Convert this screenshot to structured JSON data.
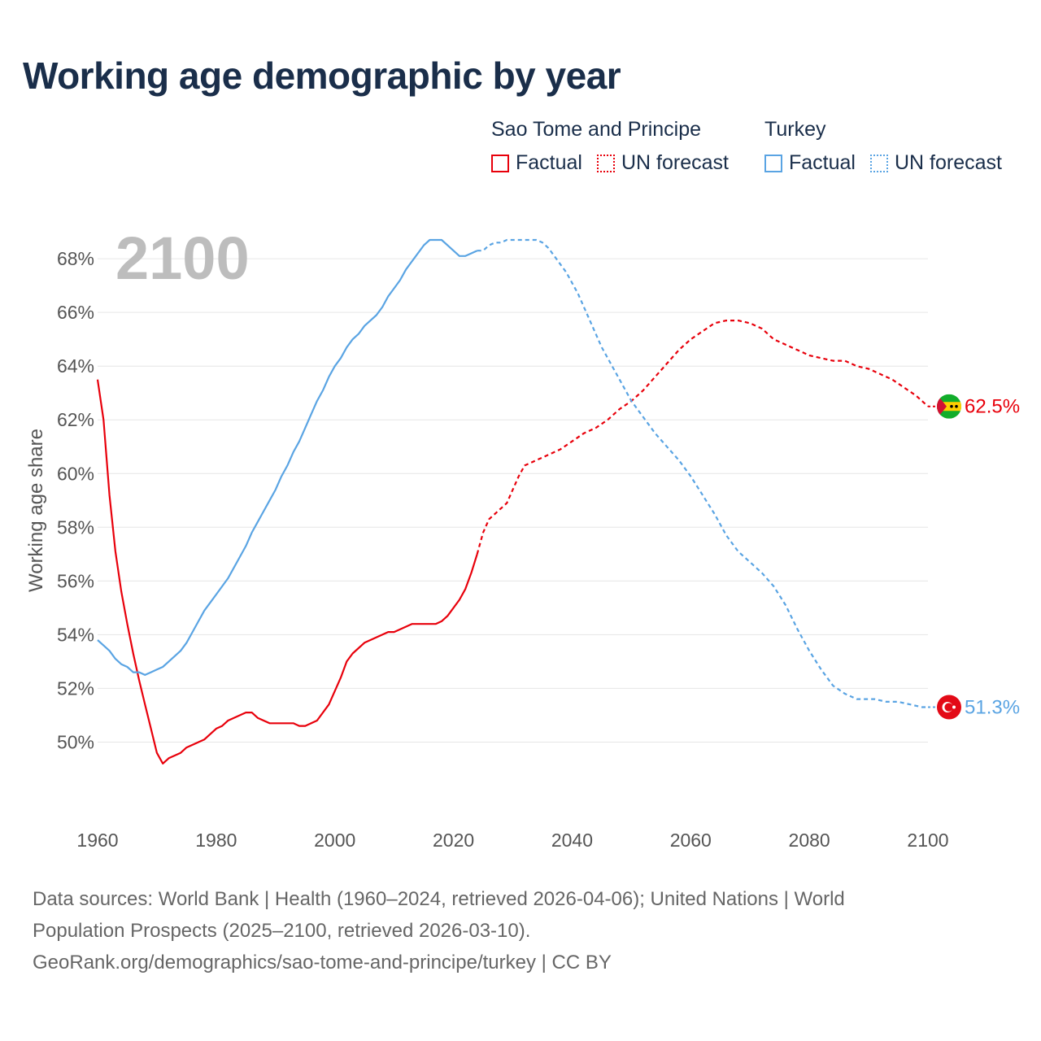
{
  "title": "Working age demographic by year",
  "legend": [
    {
      "country": "Sao Tome and Principe",
      "color": "#e8000b",
      "factual_label": "Factual",
      "forecast_label": "UN forecast"
    },
    {
      "country": "Turkey",
      "color": "#5aa4e3",
      "factual_label": "Factual",
      "forecast_label": "UN forecast"
    }
  ],
  "year_overlay": "2100",
  "footer": {
    "line1": "Data sources: World Bank | Health (1960–2024, retrieved 2026-04-06); United Nations | World",
    "line2": "Population Prospects (2025–2100, retrieved 2026-03-10).",
    "line3": "GeoRank.org/demographics/sao-tome-and-principe/turkey | CC BY"
  },
  "chart_data": {
    "type": "line",
    "title": "Working age demographic by year",
    "xlabel": "",
    "ylabel": "Working age share",
    "xlim": [
      1960,
      2100
    ],
    "ylim": [
      47.5,
      69.7
    ],
    "x_ticks": [
      1960,
      1980,
      2000,
      2020,
      2040,
      2060,
      2080,
      2100
    ],
    "y_ticks": [
      50,
      52,
      54,
      56,
      58,
      60,
      62,
      64,
      66,
      68
    ],
    "y_tick_labels": [
      "50%",
      "52%",
      "54%",
      "56%",
      "58%",
      "60%",
      "62%",
      "64%",
      "66%",
      "68%"
    ],
    "x_tick_labels": [
      "1960",
      "1980",
      "2000",
      "2020",
      "2040",
      "2060",
      "2080",
      "2100"
    ],
    "factual_end_year": 2024,
    "series": [
      {
        "name": "Sao Tome and Principe",
        "color": "#e8000b",
        "end_label": "62.5%",
        "flag": "sao-tome-and-principe-flag",
        "points": [
          [
            1960,
            63.5
          ],
          [
            1961,
            62.0
          ],
          [
            1962,
            59.2
          ],
          [
            1963,
            57.1
          ],
          [
            1964,
            55.6
          ],
          [
            1965,
            54.4
          ],
          [
            1966,
            53.3
          ],
          [
            1967,
            52.3
          ],
          [
            1968,
            51.4
          ],
          [
            1969,
            50.5
          ],
          [
            1970,
            49.6
          ],
          [
            1971,
            49.2
          ],
          [
            1972,
            49.4
          ],
          [
            1974,
            49.6
          ],
          [
            1975,
            49.8
          ],
          [
            1978,
            50.1
          ],
          [
            1980,
            50.5
          ],
          [
            1981,
            50.6
          ],
          [
            1982,
            50.8
          ],
          [
            1985,
            51.1
          ],
          [
            1986,
            51.1
          ],
          [
            1987,
            50.9
          ],
          [
            1989,
            50.7
          ],
          [
            1993,
            50.7
          ],
          [
            1994,
            50.6
          ],
          [
            1995,
            50.6
          ],
          [
            1997,
            50.8
          ],
          [
            1999,
            51.4
          ],
          [
            2001,
            52.4
          ],
          [
            2002,
            53.0
          ],
          [
            2003,
            53.3
          ],
          [
            2005,
            53.7
          ],
          [
            2008,
            54.0
          ],
          [
            2009,
            54.1
          ],
          [
            2010,
            54.1
          ],
          [
            2013,
            54.4
          ],
          [
            2017,
            54.4
          ],
          [
            2018,
            54.5
          ],
          [
            2019,
            54.7
          ],
          [
            2021,
            55.3
          ],
          [
            2022,
            55.7
          ],
          [
            2023,
            56.3
          ],
          [
            2024,
            57.0
          ],
          [
            2025,
            57.8
          ],
          [
            2026,
            58.3
          ],
          [
            2028,
            58.7
          ],
          [
            2029,
            58.9
          ],
          [
            2030,
            59.4
          ],
          [
            2031,
            59.9
          ],
          [
            2032,
            60.3
          ],
          [
            2033,
            60.4
          ],
          [
            2035,
            60.6
          ],
          [
            2037,
            60.8
          ],
          [
            2038,
            60.9
          ],
          [
            2040,
            61.2
          ],
          [
            2042,
            61.5
          ],
          [
            2044,
            61.7
          ],
          [
            2046,
            62.0
          ],
          [
            2048,
            62.4
          ],
          [
            2050,
            62.7
          ],
          [
            2052,
            63.1
          ],
          [
            2054,
            63.6
          ],
          [
            2056,
            64.1
          ],
          [
            2058,
            64.6
          ],
          [
            2060,
            65.0
          ],
          [
            2062,
            65.3
          ],
          [
            2064,
            65.6
          ],
          [
            2066,
            65.7
          ],
          [
            2068,
            65.7
          ],
          [
            2070,
            65.6
          ],
          [
            2072,
            65.4
          ],
          [
            2074,
            65.0
          ],
          [
            2076,
            64.8
          ],
          [
            2078,
            64.6
          ],
          [
            2080,
            64.4
          ],
          [
            2082,
            64.3
          ],
          [
            2084,
            64.2
          ],
          [
            2086,
            64.2
          ],
          [
            2088,
            64.0
          ],
          [
            2090,
            63.9
          ],
          [
            2092,
            63.7
          ],
          [
            2094,
            63.5
          ],
          [
            2096,
            63.2
          ],
          [
            2098,
            62.9
          ],
          [
            2099,
            62.7
          ],
          [
            2100,
            62.5
          ]
        ]
      },
      {
        "name": "Turkey",
        "color": "#5aa4e3",
        "end_label": "51.3%",
        "flag": "turkey-flag",
        "points": [
          [
            1960,
            53.8
          ],
          [
            1961,
            53.6
          ],
          [
            1962,
            53.4
          ],
          [
            1963,
            53.1
          ],
          [
            1964,
            52.9
          ],
          [
            1965,
            52.8
          ],
          [
            1966,
            52.6
          ],
          [
            1967,
            52.6
          ],
          [
            1968,
            52.5
          ],
          [
            1969,
            52.6
          ],
          [
            1970,
            52.7
          ],
          [
            1971,
            52.8
          ],
          [
            1972,
            53.0
          ],
          [
            1973,
            53.2
          ],
          [
            1974,
            53.4
          ],
          [
            1975,
            53.7
          ],
          [
            1976,
            54.1
          ],
          [
            1977,
            54.5
          ],
          [
            1978,
            54.9
          ],
          [
            1979,
            55.2
          ],
          [
            1980,
            55.5
          ],
          [
            1981,
            55.8
          ],
          [
            1982,
            56.1
          ],
          [
            1983,
            56.5
          ],
          [
            1984,
            56.9
          ],
          [
            1985,
            57.3
          ],
          [
            1986,
            57.8
          ],
          [
            1987,
            58.2
          ],
          [
            1988,
            58.6
          ],
          [
            1989,
            59.0
          ],
          [
            1990,
            59.4
          ],
          [
            1991,
            59.9
          ],
          [
            1992,
            60.3
          ],
          [
            1993,
            60.8
          ],
          [
            1994,
            61.2
          ],
          [
            1995,
            61.7
          ],
          [
            1996,
            62.2
          ],
          [
            1997,
            62.7
          ],
          [
            1998,
            63.1
          ],
          [
            1999,
            63.6
          ],
          [
            2000,
            64.0
          ],
          [
            2001,
            64.3
          ],
          [
            2002,
            64.7
          ],
          [
            2003,
            65.0
          ],
          [
            2004,
            65.2
          ],
          [
            2005,
            65.5
          ],
          [
            2006,
            65.7
          ],
          [
            2007,
            65.9
          ],
          [
            2008,
            66.2
          ],
          [
            2009,
            66.6
          ],
          [
            2010,
            66.9
          ],
          [
            2011,
            67.2
          ],
          [
            2012,
            67.6
          ],
          [
            2013,
            67.9
          ],
          [
            2014,
            68.2
          ],
          [
            2015,
            68.5
          ],
          [
            2016,
            68.7
          ],
          [
            2018,
            68.7
          ],
          [
            2019,
            68.5
          ],
          [
            2020,
            68.3
          ],
          [
            2021,
            68.1
          ],
          [
            2022,
            68.1
          ],
          [
            2023,
            68.2
          ],
          [
            2024,
            68.3
          ],
          [
            2025,
            68.3
          ],
          [
            2026,
            68.5
          ],
          [
            2027,
            68.6
          ],
          [
            2028,
            68.6
          ],
          [
            2029,
            68.7
          ],
          [
            2034,
            68.7
          ],
          [
            2035,
            68.6
          ],
          [
            2036,
            68.4
          ],
          [
            2037,
            68.1
          ],
          [
            2038,
            67.8
          ],
          [
            2039,
            67.5
          ],
          [
            2040,
            67.1
          ],
          [
            2041,
            66.7
          ],
          [
            2042,
            66.2
          ],
          [
            2043,
            65.7
          ],
          [
            2044,
            65.2
          ],
          [
            2045,
            64.7
          ],
          [
            2046,
            64.3
          ],
          [
            2047,
            63.9
          ],
          [
            2048,
            63.5
          ],
          [
            2049,
            63.1
          ],
          [
            2050,
            62.7
          ],
          [
            2052,
            62.1
          ],
          [
            2054,
            61.5
          ],
          [
            2056,
            61.0
          ],
          [
            2058,
            60.5
          ],
          [
            2060,
            59.9
          ],
          [
            2062,
            59.2
          ],
          [
            2064,
            58.5
          ],
          [
            2066,
            57.7
          ],
          [
            2068,
            57.1
          ],
          [
            2070,
            56.7
          ],
          [
            2072,
            56.3
          ],
          [
            2074,
            55.8
          ],
          [
            2076,
            55.1
          ],
          [
            2078,
            54.2
          ],
          [
            2080,
            53.4
          ],
          [
            2082,
            52.7
          ],
          [
            2084,
            52.1
          ],
          [
            2086,
            51.8
          ],
          [
            2088,
            51.6
          ],
          [
            2091,
            51.6
          ],
          [
            2093,
            51.5
          ],
          [
            2095,
            51.5
          ],
          [
            2097,
            51.4
          ],
          [
            2099,
            51.3
          ],
          [
            2100,
            51.3
          ]
        ]
      }
    ]
  }
}
